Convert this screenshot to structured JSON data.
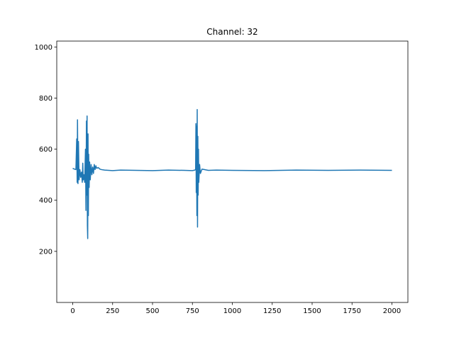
{
  "chart_data": {
    "type": "line",
    "title": "Channel: 32",
    "x": [
      0,
      10,
      20,
      25,
      28,
      30,
      33,
      36,
      40,
      45,
      50,
      55,
      60,
      63,
      66,
      70,
      75,
      80,
      83,
      86,
      88,
      90,
      92,
      94,
      96,
      98,
      100,
      103,
      106,
      110,
      115,
      120,
      125,
      130,
      135,
      140,
      145,
      150,
      160,
      170,
      180,
      200,
      250,
      300,
      400,
      500,
      600,
      700,
      750,
      765,
      770,
      772,
      774,
      776,
      778,
      780,
      782,
      784,
      786,
      788,
      790,
      795,
      800,
      810,
      850,
      900,
      1000,
      1200,
      1400,
      1600,
      1800,
      2000
    ],
    "series": [
      {
        "name": "channel-32",
        "color": "#1f77b4",
        "values": [
          525,
          522,
          520,
          640,
          470,
          715,
          465,
          630,
          480,
          520,
          490,
          510,
          470,
          545,
          480,
          500,
          470,
          600,
          360,
          710,
          420,
          730,
          300,
          250,
          660,
          340,
          580,
          450,
          550,
          480,
          540,
          500,
          530,
          505,
          540,
          520,
          535,
          525,
          528,
          522,
          520,
          518,
          516,
          518,
          517,
          516,
          518,
          517,
          516,
          518,
          520,
          700,
          430,
          690,
          340,
          755,
          295,
          650,
          420,
          600,
          470,
          540,
          505,
          522,
          517,
          518,
          517,
          516,
          518,
          517,
          518,
          517
        ]
      }
    ],
    "xlim": [
      -100,
      2100
    ],
    "ylim": [
      0,
      1023
    ],
    "xticks": [
      0,
      250,
      500,
      750,
      1000,
      1250,
      1500,
      1750,
      2000
    ],
    "yticks": [
      200,
      400,
      600,
      800,
      1000
    ]
  }
}
